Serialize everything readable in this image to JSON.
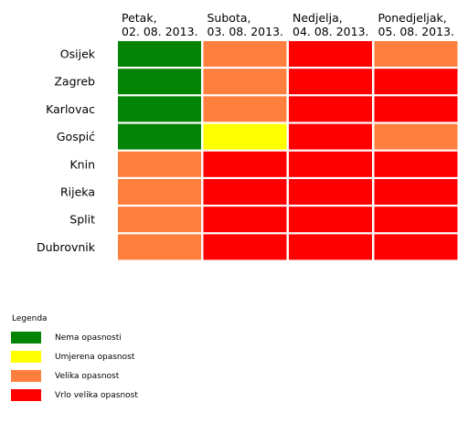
{
  "chart_data": {
    "type": "heatmap",
    "title": "",
    "columns": [
      {
        "day": "Petak,",
        "date": "02. 08. 2013."
      },
      {
        "day": "Subota,",
        "date": "03. 08. 2013."
      },
      {
        "day": "Nedjelja,",
        "date": "04. 08. 2013."
      },
      {
        "day": "Ponedjeljak,",
        "date": "05. 08. 2013."
      }
    ],
    "rows": [
      "Osijek",
      "Zagreb",
      "Karlovac",
      "Gospić",
      "Knin",
      "Rijeka",
      "Split",
      "Dubrovnik"
    ],
    "levels": [
      {
        "key": "none",
        "label": "Nema opasnosti",
        "color": "#048404"
      },
      {
        "key": "moderate",
        "label": "Umjerena opasnost",
        "color": "#ffff00"
      },
      {
        "key": "high",
        "label": "Velika opasnost",
        "color": "#ff7f3f"
      },
      {
        "key": "very_high",
        "label": "Vrlo velika opasnost",
        "color": "#ff0000"
      }
    ],
    "values": [
      [
        "none",
        "high",
        "very_high",
        "high"
      ],
      [
        "none",
        "high",
        "very_high",
        "very_high"
      ],
      [
        "none",
        "high",
        "very_high",
        "very_high"
      ],
      [
        "none",
        "moderate",
        "very_high",
        "high"
      ],
      [
        "high",
        "very_high",
        "very_high",
        "very_high"
      ],
      [
        "high",
        "very_high",
        "very_high",
        "very_high"
      ],
      [
        "high",
        "very_high",
        "very_high",
        "very_high"
      ],
      [
        "high",
        "very_high",
        "very_high",
        "very_high"
      ]
    ],
    "legend": {
      "title": "Legenda",
      "position": "bottom-left"
    }
  }
}
